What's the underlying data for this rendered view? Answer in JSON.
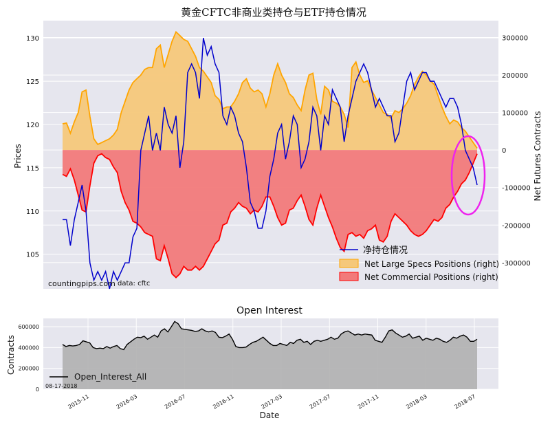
{
  "colors": {
    "price": "#0000cc",
    "specs_line": "#ffa500",
    "specs_fill": "#f5c87a",
    "comm_line": "#ff0000",
    "comm_fill": "#f27a7a",
    "plot_bg": "#e6e6ee",
    "circle": "#ee22ee",
    "oi_fill": "#b0b0b0"
  },
  "chart_data": [
    {
      "type": "line",
      "title": "黄金CFTC非商业类持仓与ETF持仓情况",
      "xlabel": "",
      "ylabel": "Prices",
      "y2label": "Net Futures Contracts",
      "ylim": [
        101,
        132
      ],
      "y2lim": [
        -370000,
        345000
      ],
      "yticks": [
        "105",
        "110",
        "115",
        "120",
        "125",
        "130"
      ],
      "y2ticks": [
        "-300000",
        "-200000",
        "-100000",
        "0",
        "100000",
        "200000",
        "300000"
      ],
      "series": [
        {
          "name": "净持仓情况",
          "axis": "left",
          "values": [
            109,
            109,
            106,
            109,
            111,
            113,
            110,
            104,
            102,
            103,
            102,
            103,
            101,
            103,
            102,
            103,
            104,
            104,
            107,
            108,
            117,
            119,
            121,
            117,
            119,
            117,
            122,
            120,
            119,
            121,
            115,
            118,
            126,
            127,
            126,
            123,
            130,
            128,
            129,
            127,
            126,
            121,
            120,
            122,
            121,
            119,
            118,
            115,
            111,
            110,
            108,
            108,
            110,
            114,
            116,
            119,
            120,
            116,
            118,
            121,
            120,
            115,
            116,
            118,
            122,
            121,
            117,
            121,
            120,
            124,
            123,
            122,
            118,
            121,
            123,
            125,
            126,
            127,
            126,
            124,
            122,
            123,
            122,
            121,
            121,
            118,
            119,
            122,
            125,
            126,
            124,
            125,
            126,
            126,
            125,
            125,
            124,
            123,
            122,
            123,
            123,
            122,
            120,
            117,
            116,
            115,
            113
          ]
        },
        {
          "name": "Net Large Specs Positions (right)",
          "axis": "right",
          "values": [
            70000,
            72000,
            45000,
            75000,
            100000,
            155000,
            160000,
            90000,
            30000,
            15000,
            20000,
            25000,
            30000,
            40000,
            55000,
            100000,
            130000,
            160000,
            180000,
            190000,
            200000,
            215000,
            220000,
            220000,
            270000,
            280000,
            220000,
            255000,
            290000,
            315000,
            305000,
            295000,
            290000,
            270000,
            250000,
            220000,
            210000,
            195000,
            180000,
            145000,
            135000,
            110000,
            115000,
            115000,
            130000,
            150000,
            180000,
            190000,
            165000,
            155000,
            160000,
            150000,
            115000,
            150000,
            200000,
            230000,
            200000,
            180000,
            150000,
            140000,
            120000,
            105000,
            160000,
            200000,
            205000,
            135000,
            95000,
            170000,
            160000,
            130000,
            125000,
            115000,
            95000,
            60000,
            220000,
            235000,
            200000,
            180000,
            185000,
            160000,
            140000,
            120000,
            100000,
            95000,
            85000,
            105000,
            100000,
            110000,
            125000,
            145000,
            175000,
            195000,
            210000,
            200000,
            185000,
            175000,
            145000,
            115000,
            90000,
            70000,
            80000,
            75000,
            60000,
            50000,
            35000,
            20000,
            5000
          ]
        },
        {
          "name": "Net Commercial Positions (right)",
          "axis": "right",
          "values": [
            -65000,
            -70000,
            -50000,
            -80000,
            -120000,
            -160000,
            -165000,
            -95000,
            -35000,
            -15000,
            -10000,
            -20000,
            -25000,
            -45000,
            -60000,
            -110000,
            -140000,
            -160000,
            -190000,
            -195000,
            -205000,
            -220000,
            -225000,
            -230000,
            -290000,
            -295000,
            -255000,
            -290000,
            -330000,
            -340000,
            -330000,
            -310000,
            -320000,
            -320000,
            -310000,
            -320000,
            -310000,
            -290000,
            -270000,
            -250000,
            -240000,
            -200000,
            -195000,
            -165000,
            -155000,
            -140000,
            -150000,
            -155000,
            -170000,
            -160000,
            -165000,
            -150000,
            -125000,
            -125000,
            -150000,
            -180000,
            -200000,
            -195000,
            -160000,
            -155000,
            -135000,
            -120000,
            -150000,
            -185000,
            -200000,
            -155000,
            -120000,
            -150000,
            -180000,
            -205000,
            -235000,
            -260000,
            -270000,
            -225000,
            -220000,
            -230000,
            -225000,
            -235000,
            -215000,
            -210000,
            -200000,
            -240000,
            -245000,
            -230000,
            -190000,
            -170000,
            -180000,
            -190000,
            -200000,
            -215000,
            -225000,
            -230000,
            -225000,
            -215000,
            -200000,
            -185000,
            -190000,
            -180000,
            -155000,
            -145000,
            -125000,
            -110000,
            -90000,
            -80000,
            -60000,
            -35000,
            -10000
          ]
        }
      ],
      "annotations": [
        "countingpips.com",
        "data: cftc"
      ]
    },
    {
      "type": "area",
      "title": "Open Interest",
      "xlabel": "Date",
      "ylabel": "Contracts",
      "ylim": [
        0,
        680000
      ],
      "yticks": [
        "0",
        "200000",
        "400000",
        "600000"
      ],
      "xticks": [
        "2015-11",
        "2016-03",
        "2016-07",
        "2016-11",
        "2017-03",
        "2017-07",
        "2017-11",
        "2018-03",
        "2018-07"
      ],
      "start_label": "08-17-2018",
      "series": [
        {
          "name": "Open_Interest_All",
          "values": [
            430000,
            410000,
            420000,
            415000,
            420000,
            430000,
            465000,
            455000,
            445000,
            400000,
            390000,
            395000,
            390000,
            410000,
            395000,
            410000,
            420000,
            390000,
            380000,
            430000,
            455000,
            480000,
            500000,
            495000,
            510000,
            480000,
            500000,
            520000,
            500000,
            560000,
            580000,
            550000,
            600000,
            650000,
            630000,
            580000,
            575000,
            570000,
            565000,
            555000,
            560000,
            580000,
            560000,
            550000,
            560000,
            545000,
            500000,
            495000,
            510000,
            530000,
            480000,
            410000,
            400000,
            400000,
            405000,
            430000,
            450000,
            460000,
            480000,
            500000,
            470000,
            440000,
            420000,
            420000,
            440000,
            430000,
            420000,
            450000,
            440000,
            470000,
            480000,
            450000,
            460000,
            430000,
            460000,
            470000,
            460000,
            470000,
            480000,
            500000,
            480000,
            490000,
            530000,
            550000,
            560000,
            540000,
            520000,
            530000,
            520000,
            530000,
            525000,
            520000,
            470000,
            460000,
            450000,
            500000,
            560000,
            570000,
            540000,
            520000,
            500000,
            510000,
            530000,
            490000,
            500000,
            510000,
            470000,
            490000,
            480000,
            470000,
            490000,
            480000,
            460000,
            450000,
            470000,
            500000,
            490000,
            510000,
            520000,
            500000,
            460000,
            460000,
            480000
          ]
        }
      ]
    }
  ]
}
